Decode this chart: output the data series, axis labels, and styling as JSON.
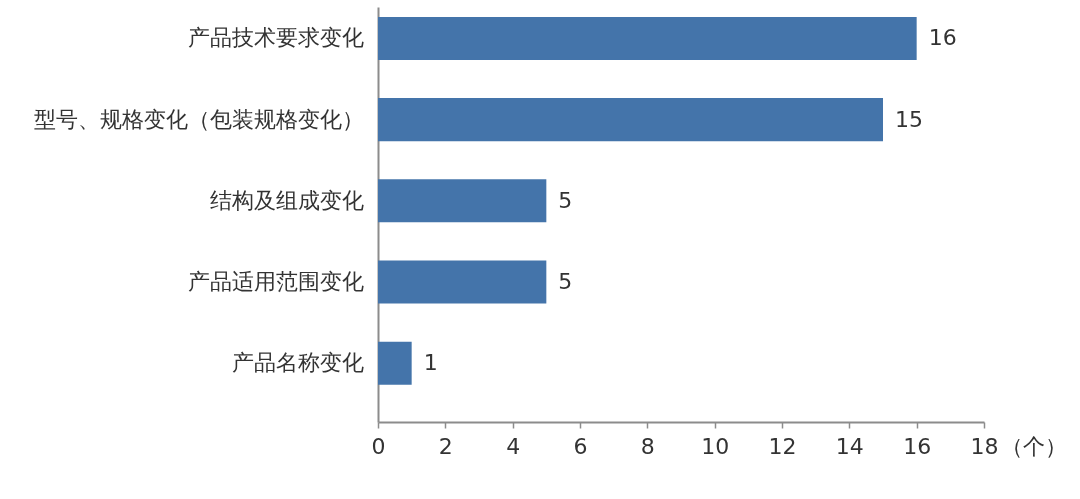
{
  "chart_data": {
    "type": "bar",
    "orientation": "horizontal",
    "categories": [
      "产品技术要求变化",
      "型号、规格变化（包装规格变化）",
      "结构及组成变化",
      "产品适用范围变化",
      "产品名称变化"
    ],
    "values": [
      16,
      15,
      5,
      5,
      1
    ],
    "color": "#4474aa",
    "xlabel": "（个）",
    "xlim": [
      0,
      18
    ],
    "xticks": [
      0,
      2,
      4,
      6,
      8,
      10,
      12,
      14,
      16,
      18
    ],
    "data_labels": true
  }
}
